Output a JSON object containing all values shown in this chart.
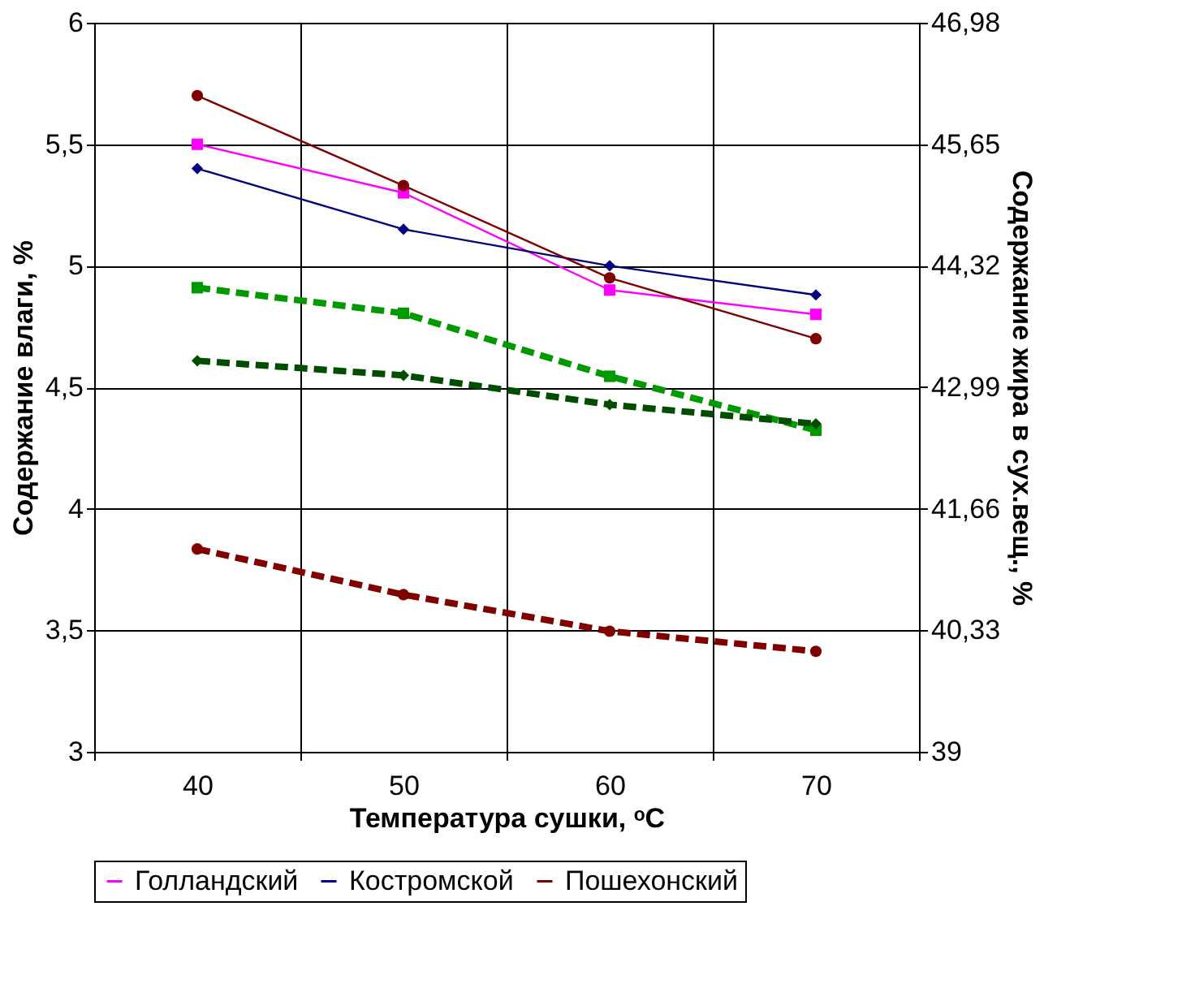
{
  "chart_data": {
    "type": "line",
    "categories": [
      "40",
      "50",
      "60",
      "70"
    ],
    "xlabel": "Температура сушки, ᵒC",
    "ylabel": "Содержание влаги, %",
    "y2label": "Содержание жира в сух.вещ., %",
    "ylim": [
      3,
      6
    ],
    "yticks": [
      3,
      {
        "value": 3.5,
        "label": "3,5"
      },
      4,
      {
        "value": 4.5,
        "label": "4,5"
      },
      5,
      {
        "value": 5.5,
        "label": "5,5"
      },
      6
    ],
    "y2lim": [
      39,
      46.98
    ],
    "y2ticks": [
      39,
      {
        "value": 40.33,
        "label": "40,33"
      },
      {
        "value": 41.66,
        "label": "41,66"
      },
      {
        "value": 42.99,
        "label": "42,99"
      },
      {
        "value": 44.32,
        "label": "44,32"
      },
      {
        "value": 45.65,
        "label": "45,65"
      },
      {
        "value": 46.98,
        "label": "46,98"
      }
    ],
    "grid": true,
    "legend": "bottom",
    "series": [
      {
        "name": "Голландский",
        "color": "#ff00ff",
        "marker": "square",
        "line_style": "solid",
        "values": [
          5.5,
          5.3,
          4.9,
          4.8
        ]
      },
      {
        "name": "Костромской",
        "color": "#000080",
        "marker": "diamond",
        "line_style": "solid",
        "values": [
          5.4,
          5.15,
          5.0,
          4.88
        ]
      },
      {
        "name": "Пошехонский",
        "color": "#800000",
        "marker": "circle",
        "line_style": "solid",
        "values": [
          5.7,
          5.33,
          4.95,
          4.7
        ]
      },
      {
        "color": "#009900",
        "marker": "square",
        "line_style": "dashed",
        "axis": "y2",
        "values": [
          44.08,
          43.8,
          43.11,
          42.52
        ]
      },
      {
        "color": "#004d00",
        "marker": "diamond",
        "line_style": "dashed",
        "axis": "y2",
        "values": [
          43.28,
          43.12,
          42.8,
          42.59
        ]
      },
      {
        "color": "#800000",
        "marker": "circle",
        "line_style": "dashed",
        "axis": "y2",
        "values": [
          41.22,
          40.72,
          40.32,
          40.1
        ]
      }
    ]
  }
}
